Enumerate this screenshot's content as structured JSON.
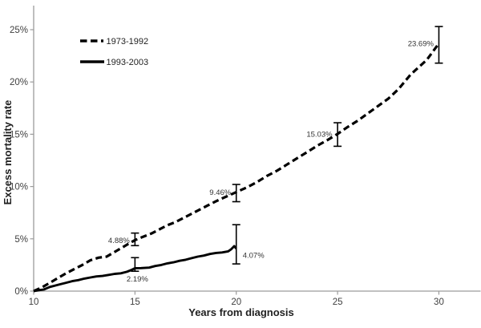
{
  "chart_data": {
    "type": "line",
    "title": "",
    "xlabel": "Years from diagnosis",
    "ylabel": "Excess mortality rate",
    "xlim": [
      10,
      32
    ],
    "ylim": [
      0,
      27.3
    ],
    "x_ticks": [
      10,
      15,
      20,
      25,
      30
    ],
    "y_ticks": [
      0,
      5,
      10,
      15,
      20,
      25
    ],
    "y_tick_suffix": "%",
    "x_tick_suffix": "",
    "grid": false,
    "legend_position": "top-left-inside",
    "series": [
      {
        "name": "1973-1992",
        "style": "dashed",
        "color": "#000000",
        "points": [
          [
            10,
            0
          ],
          [
            10.4,
            0.35
          ],
          [
            10.8,
            0.8
          ],
          [
            11.2,
            1.25
          ],
          [
            11.6,
            1.7
          ],
          [
            12.0,
            2.1
          ],
          [
            12.4,
            2.5
          ],
          [
            12.8,
            2.95
          ],
          [
            13.2,
            3.2
          ],
          [
            13.6,
            3.3
          ],
          [
            14.0,
            3.75
          ],
          [
            14.4,
            4.2
          ],
          [
            14.7,
            4.55
          ],
          [
            15.0,
            4.88
          ],
          [
            15.4,
            5.2
          ],
          [
            15.8,
            5.5
          ],
          [
            16.2,
            5.9
          ],
          [
            16.6,
            6.3
          ],
          [
            17.0,
            6.6
          ],
          [
            17.4,
            7.0
          ],
          [
            17.8,
            7.4
          ],
          [
            18.2,
            7.8
          ],
          [
            18.6,
            8.2
          ],
          [
            19.0,
            8.6
          ],
          [
            19.4,
            8.95
          ],
          [
            19.7,
            9.2
          ],
          [
            20.0,
            9.46
          ],
          [
            20.5,
            9.9
          ],
          [
            21.0,
            10.4
          ],
          [
            21.5,
            11.0
          ],
          [
            22.0,
            11.5
          ],
          [
            22.5,
            12.1
          ],
          [
            23.0,
            12.7
          ],
          [
            23.5,
            13.3
          ],
          [
            24.0,
            13.9
          ],
          [
            24.5,
            14.45
          ],
          [
            25.0,
            15.03
          ],
          [
            25.5,
            15.7
          ],
          [
            26.0,
            16.3
          ],
          [
            26.5,
            17.0
          ],
          [
            27.0,
            17.7
          ],
          [
            27.5,
            18.4
          ],
          [
            28.0,
            19.3
          ],
          [
            28.3,
            20.0
          ],
          [
            28.6,
            20.7
          ],
          [
            29.0,
            21.4
          ],
          [
            29.4,
            22.1
          ],
          [
            29.7,
            22.9
          ],
          [
            30.0,
            23.69
          ]
        ],
        "error_bars": [
          {
            "x": 15,
            "y": 4.88,
            "lo": 4.35,
            "hi": 5.55,
            "label": "4.88%",
            "label_side": "left"
          },
          {
            "x": 20,
            "y": 9.46,
            "lo": 8.55,
            "hi": 10.2,
            "label": "9.46%",
            "label_side": "left"
          },
          {
            "x": 25,
            "y": 15.03,
            "lo": 13.85,
            "hi": 16.1,
            "label": "15.03%",
            "label_side": "left"
          },
          {
            "x": 30,
            "y": 23.69,
            "lo": 21.8,
            "hi": 25.3,
            "label": "23.69%",
            "label_side": "left"
          }
        ]
      },
      {
        "name": "1993-2003",
        "style": "solid",
        "color": "#000000",
        "points": [
          [
            10,
            0
          ],
          [
            10.3,
            0.1
          ],
          [
            10.5,
            0.15
          ],
          [
            10.8,
            0.4
          ],
          [
            11.0,
            0.5
          ],
          [
            11.3,
            0.65
          ],
          [
            11.6,
            0.8
          ],
          [
            11.9,
            0.95
          ],
          [
            12.2,
            1.05
          ],
          [
            12.5,
            1.2
          ],
          [
            12.8,
            1.3
          ],
          [
            13.1,
            1.4
          ],
          [
            13.4,
            1.45
          ],
          [
            13.7,
            1.55
          ],
          [
            14.0,
            1.65
          ],
          [
            14.3,
            1.7
          ],
          [
            14.6,
            1.85
          ],
          [
            14.8,
            2.0
          ],
          [
            15.0,
            2.19
          ],
          [
            15.3,
            2.2
          ],
          [
            15.7,
            2.25
          ],
          [
            16.0,
            2.4
          ],
          [
            16.3,
            2.5
          ],
          [
            16.6,
            2.65
          ],
          [
            16.9,
            2.75
          ],
          [
            17.2,
            2.9
          ],
          [
            17.5,
            3.0
          ],
          [
            17.8,
            3.15
          ],
          [
            18.1,
            3.3
          ],
          [
            18.4,
            3.4
          ],
          [
            18.7,
            3.55
          ],
          [
            19.0,
            3.65
          ],
          [
            19.3,
            3.7
          ],
          [
            19.6,
            3.8
          ],
          [
            19.75,
            4.0
          ],
          [
            19.9,
            4.3
          ],
          [
            20.0,
            4.07
          ]
        ],
        "error_bars": [
          {
            "x": 15,
            "y": 2.19,
            "lo": 1.9,
            "hi": 3.2,
            "label": "2.19%",
            "label_side": "below"
          },
          {
            "x": 20,
            "y": 4.07,
            "lo": 2.6,
            "hi": 6.35,
            "label": "4.07%",
            "label_side": "right-low"
          }
        ]
      }
    ]
  },
  "colors": {
    "line": "#000000",
    "axis": "#9c9c9c",
    "tick_text": "#404040",
    "point_label_text": "#333333",
    "background": "#ffffff"
  }
}
